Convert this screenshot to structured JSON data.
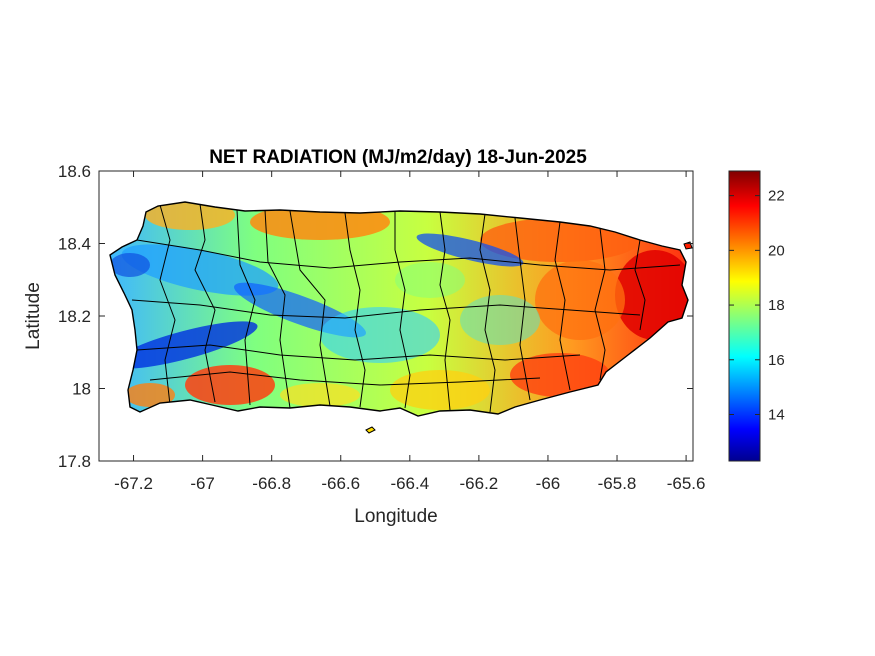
{
  "title": "NET RADIATION (MJ/m2/day) 18-Jun-2025",
  "xlabel": "Longitude",
  "ylabel": "Latitude",
  "map": {
    "x_range": [
      -67.3,
      -65.58
    ],
    "y_range": [
      17.8,
      18.6
    ],
    "x_ticks": [
      "-67.2",
      "-67",
      "-66.8",
      "-66.6",
      "-66.4",
      "-66.2",
      "-66",
      "-65.8",
      "-65.6"
    ],
    "x_tick_values": [
      -67.2,
      -67.0,
      -66.8,
      -66.6,
      -66.4,
      -66.2,
      -66.0,
      -65.8,
      -65.6
    ],
    "y_ticks": [
      "18.6",
      "18.4",
      "18.2",
      "18"
    ],
    "y_tick_values": [
      18.6,
      18.4,
      18.2,
      18.0
    ],
    "y_tick_bottom": "17.8",
    "colormap": "jet",
    "region": "Puerto Rico municipalities"
  },
  "colorbar": {
    "range": [
      12.3,
      22.9
    ],
    "ticks": [
      "22",
      "20",
      "18",
      "16",
      "14"
    ],
    "tick_values": [
      22,
      20,
      18,
      16,
      14
    ]
  }
}
